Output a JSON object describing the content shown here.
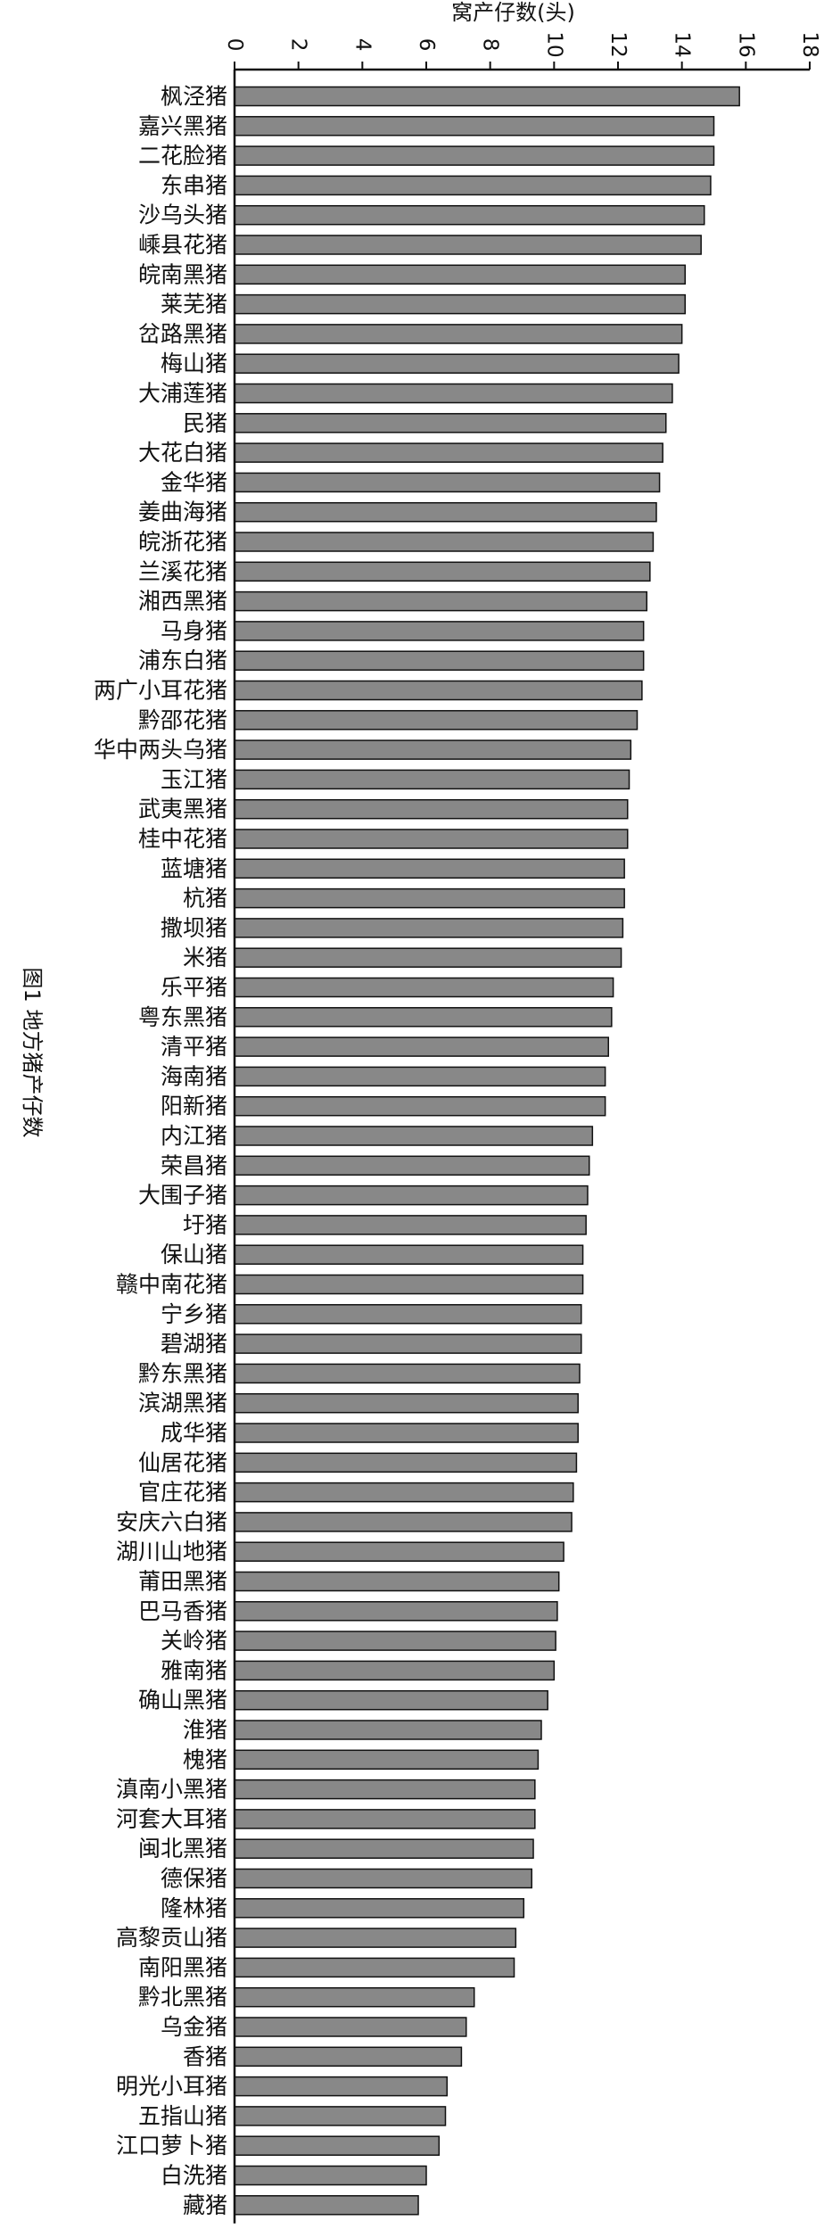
{
  "chart_data": {
    "type": "bar",
    "orientation": "horizontal",
    "title": "",
    "xlabel": "窝产仔数(头)",
    "ylabel": "",
    "caption": "图1  地方猪产仔数",
    "xlim": [
      0,
      18
    ],
    "xticks": [
      0,
      2,
      4,
      6,
      8,
      10,
      12,
      14,
      16,
      18
    ],
    "grid": false,
    "bar_color": "#888888",
    "categories": [
      "枫泾猪",
      "嘉兴黑猪",
      "二花脸猪",
      "东串猪",
      "沙乌头猪",
      "嵊县花猪",
      "皖南黑猪",
      "莱芜猪",
      "岔路黑猪",
      "梅山猪",
      "大浦莲猪",
      "民猪",
      "大花白猪",
      "金华猪",
      "姜曲海猪",
      "皖浙花猪",
      "兰溪花猪",
      "湘西黑猪",
      "马身猪",
      "浦东白猪",
      "两广小耳花猪",
      "黔邵花猪",
      "华中两头乌猪",
      "玉江猪",
      "武夷黑猪",
      "桂中花猪",
      "蓝塘猪",
      "杭猪",
      "撒坝猪",
      "米猪",
      "乐平猪",
      "粤东黑猪",
      "清平猪",
      "海南猪",
      "阳新猪",
      "内江猪",
      "荣昌猪",
      "大围子猪",
      "圩猪",
      "保山猪",
      "赣中南花猪",
      "宁乡猪",
      "碧湖猪",
      "黔东黑猪",
      "滨湖黑猪",
      "成华猪",
      "仙居花猪",
      "官庄花猪",
      "安庆六白猪",
      "湖川山地猪",
      "莆田黑猪",
      "巴马香猪",
      "关岭猪",
      "雅南猪",
      "确山黑猪",
      "淮猪",
      "槐猪",
      "滇南小黑猪",
      "河套大耳猪",
      "闽北黑猪",
      "德保猪",
      "隆林猪",
      "高黎贡山猪",
      "南阳黑猪",
      "黔北黑猪",
      "乌金猪",
      "香猪",
      "明光小耳猪",
      "五指山猪",
      "江口萝卜猪",
      "白洗猪",
      "藏猪"
    ],
    "values": [
      15.8,
      15.0,
      15.0,
      14.9,
      14.7,
      14.6,
      14.1,
      14.1,
      14.0,
      13.9,
      13.7,
      13.5,
      13.4,
      13.3,
      13.2,
      13.1,
      13.0,
      12.9,
      12.8,
      12.8,
      12.75,
      12.6,
      12.4,
      12.35,
      12.3,
      12.3,
      12.2,
      12.2,
      12.15,
      12.1,
      11.85,
      11.8,
      11.7,
      11.6,
      11.6,
      11.2,
      11.1,
      11.05,
      11.0,
      10.9,
      10.9,
      10.85,
      10.85,
      10.8,
      10.75,
      10.75,
      10.7,
      10.6,
      10.55,
      10.3,
      10.15,
      10.1,
      10.05,
      10.0,
      9.8,
      9.6,
      9.5,
      9.4,
      9.4,
      9.35,
      9.3,
      9.05,
      8.8,
      8.75,
      7.5,
      7.25,
      7.1,
      6.65,
      6.6,
      6.4,
      6.0,
      5.75
    ]
  }
}
